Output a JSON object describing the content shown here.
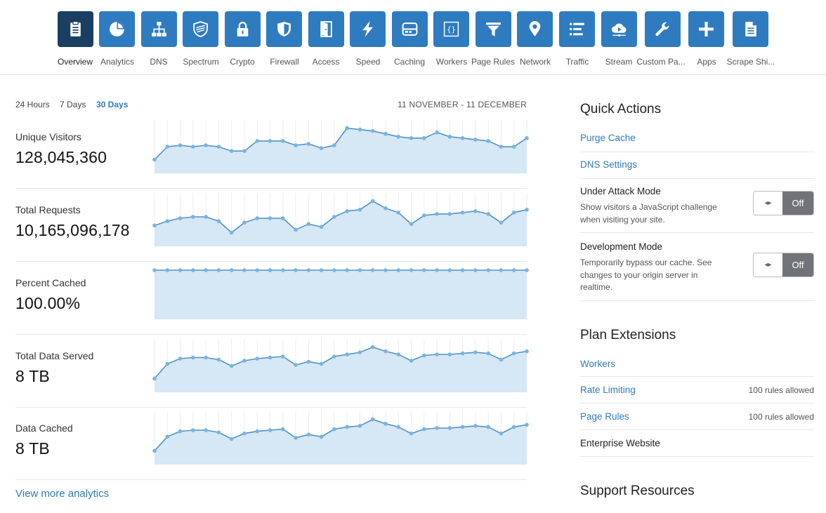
{
  "nav": {
    "items": [
      {
        "label": "Overview",
        "icon": "clipboard-icon"
      },
      {
        "label": "Analytics",
        "icon": "pie-chart-icon"
      },
      {
        "label": "DNS",
        "icon": "sitemap-icon"
      },
      {
        "label": "Spectrum",
        "icon": "shield-icon"
      },
      {
        "label": "Crypto",
        "icon": "lock-icon"
      },
      {
        "label": "Firewall",
        "icon": "firewall-shield-icon"
      },
      {
        "label": "Access",
        "icon": "door-icon"
      },
      {
        "label": "Speed",
        "icon": "lightning-icon"
      },
      {
        "label": "Caching",
        "icon": "server-icon"
      },
      {
        "label": "Workers",
        "icon": "code-braces-icon"
      },
      {
        "label": "Page Rules",
        "icon": "filter-icon"
      },
      {
        "label": "Network",
        "icon": "location-pin-icon"
      },
      {
        "label": "Traffic",
        "icon": "list-icon"
      },
      {
        "label": "Stream",
        "icon": "cloud-play-icon"
      },
      {
        "label": "Custom Pa...",
        "icon": "wrench-icon"
      },
      {
        "label": "Apps",
        "icon": "plus-icon"
      },
      {
        "label": "Scrape Shi...",
        "icon": "document-icon"
      }
    ],
    "active_index": 0
  },
  "ranges": {
    "h24": "24 Hours",
    "d7": "7 Days",
    "d30": "30 Days",
    "active": "30 Days"
  },
  "date_range": "11 NOVEMBER - 11 DECEMBER",
  "metrics": [
    {
      "label": "Unique Visitors",
      "value": "128,045,360"
    },
    {
      "label": "Total Requests",
      "value": "10,165,096,178"
    },
    {
      "label": "Percent Cached",
      "value": "100.00%"
    },
    {
      "label": "Total Data Served",
      "value": "8 TB"
    },
    {
      "label": "Data Cached",
      "value": "8 TB"
    }
  ],
  "chart_data": [
    {
      "type": "area",
      "series": [
        {
          "values": [
            8.0,
            8.9,
            9.0,
            8.9,
            9.0,
            8.9,
            8.6,
            8.6,
            9.3,
            9.3,
            9.3,
            9.0,
            9.1,
            8.8,
            9.0,
            10.2,
            10.1,
            10.0,
            9.8,
            9.6,
            9.5,
            9.5,
            9.9,
            9.6,
            9.5,
            9.4,
            9.3,
            8.9,
            8.9,
            9.5
          ]
        }
      ]
    },
    {
      "type": "area",
      "series": [
        {
          "values": [
            8.0,
            8.3,
            8.5,
            8.6,
            8.6,
            8.3,
            7.5,
            8.2,
            8.5,
            8.5,
            8.5,
            7.7,
            8.1,
            7.9,
            8.6,
            9.0,
            9.1,
            9.7,
            9.2,
            8.9,
            8.1,
            8.7,
            8.8,
            8.8,
            8.9,
            9.0,
            8.8,
            8.2,
            8.9,
            9.1
          ]
        }
      ]
    },
    {
      "type": "area",
      "series": [
        {
          "values": [
            100,
            100,
            100,
            100,
            100,
            100,
            100,
            100,
            100,
            100,
            100,
            100,
            100,
            100,
            100,
            100,
            100,
            100,
            100,
            100,
            100,
            100,
            100,
            100,
            100,
            100,
            100,
            100,
            100,
            100
          ]
        }
      ]
    },
    {
      "type": "area",
      "series": [
        {
          "values": [
            5.2,
            6.6,
            7.1,
            7.2,
            7.2,
            7.0,
            6.4,
            6.9,
            7.1,
            7.2,
            7.3,
            6.5,
            6.8,
            6.6,
            7.3,
            7.5,
            7.7,
            8.2,
            7.8,
            7.5,
            6.9,
            7.4,
            7.5,
            7.5,
            7.6,
            7.7,
            7.6,
            7.0,
            7.6,
            7.8
          ]
        }
      ]
    },
    {
      "type": "area",
      "series": [
        {
          "values": [
            5.1,
            6.4,
            6.9,
            7.0,
            7.0,
            6.8,
            6.2,
            6.7,
            6.9,
            7.0,
            7.1,
            6.3,
            6.6,
            6.4,
            7.1,
            7.3,
            7.4,
            8.0,
            7.6,
            7.3,
            6.7,
            7.1,
            7.2,
            7.2,
            7.3,
            7.4,
            7.3,
            6.7,
            7.3,
            7.5
          ]
        }
      ]
    }
  ],
  "quick_actions": {
    "title": "Quick Actions",
    "purge_cache": "Purge Cache",
    "dns_settings": "DNS Settings",
    "under_attack": {
      "title": "Under Attack Mode",
      "desc": "Show visitors a JavaScript challenge when visiting your site.",
      "state": "Off"
    },
    "dev_mode": {
      "title": "Development Mode",
      "desc": "Temporarily bypass our cache. See changes to your origin server in realtime.",
      "state": "Off"
    },
    "toggle_glyph": "◂▸"
  },
  "plan_extensions": {
    "title": "Plan Extensions",
    "workers": "Workers",
    "rate_limiting": "Rate Limiting",
    "rate_limiting_note": "100 rules allowed",
    "page_rules": "Page Rules",
    "page_rules_note": "100 rules allowed",
    "enterprise": "Enterprise Website"
  },
  "support": {
    "title": "Support Resources"
  },
  "view_more": "View more analytics",
  "colors": {
    "accent": "#2f7bbf",
    "active_tile": "#1b3f63",
    "chart_fill": "#d6e7f5",
    "chart_line": "#4f93c9",
    "chart_dot": "#7ab3de",
    "toggle_off": "#707478"
  }
}
